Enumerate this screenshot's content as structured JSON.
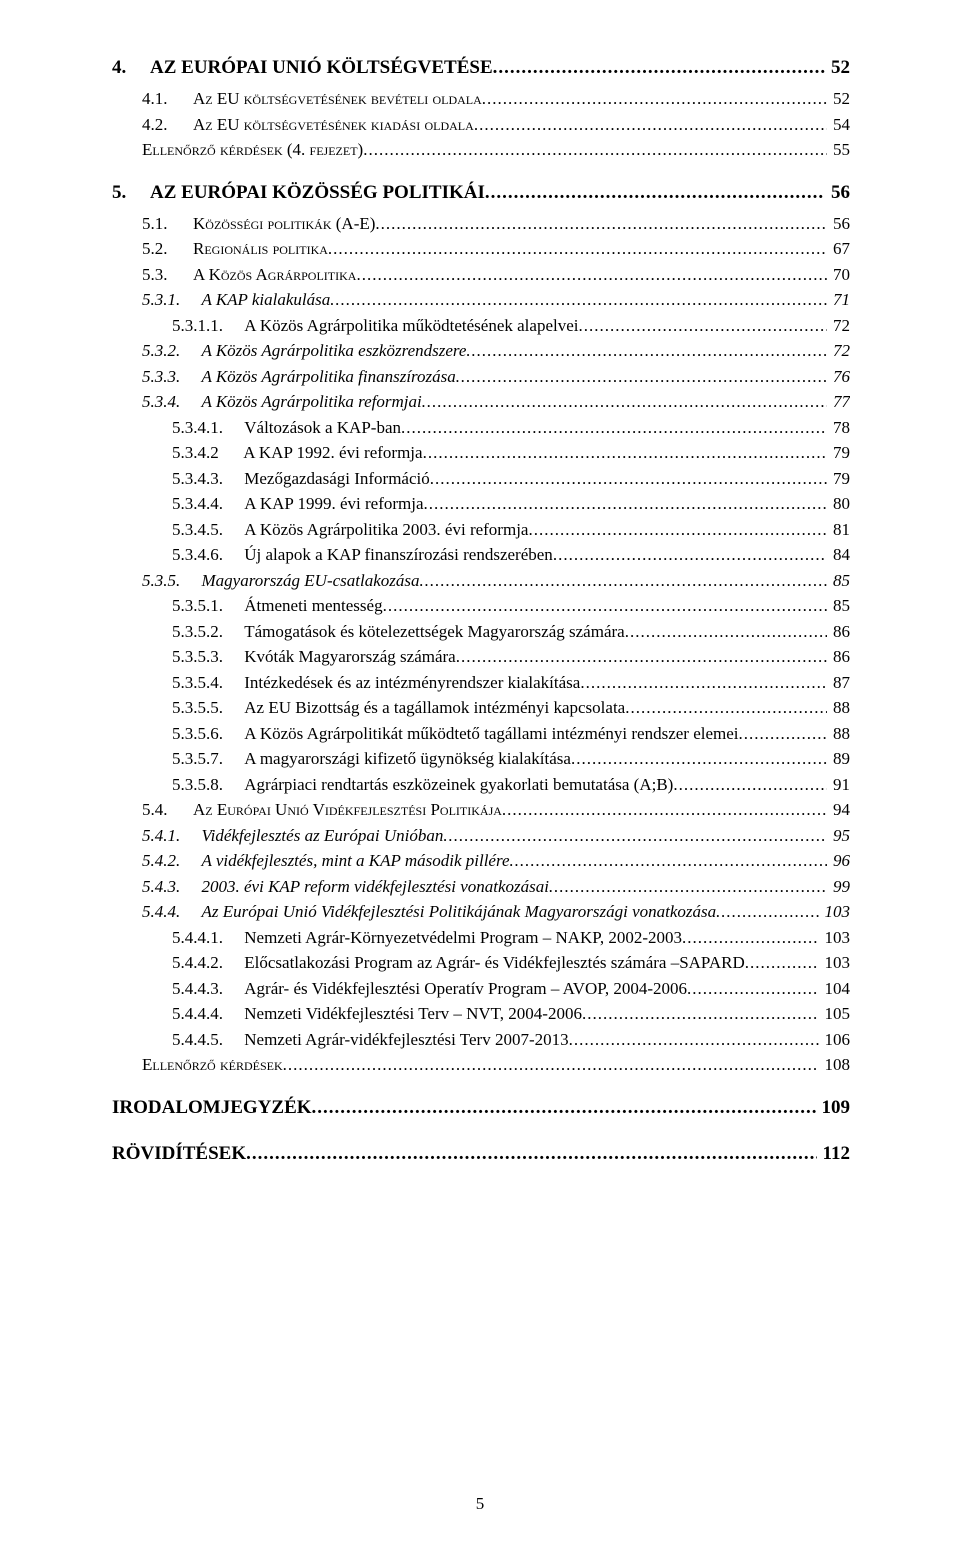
{
  "page_number": "5",
  "leaders_text": "............................................................................................................................................................................................................................................................................................................",
  "entries": [
    {
      "level": 0,
      "indent": 0,
      "num": "4.",
      "title": "AZ EURÓPAI UNIÓ KÖLTSÉGVETÉSE",
      "page": "52"
    },
    {
      "level": 1,
      "indent": 1,
      "num": "4.1.",
      "title": "Az EU költségvetésének bevételi oldala",
      "page": "52"
    },
    {
      "level": 1,
      "indent": 1,
      "num": "4.2.",
      "title": "Az EU költségvetésének kiadási oldala",
      "page": "54"
    },
    {
      "level": 1,
      "indent": 1,
      "num": "",
      "title": "Ellenőrző kérdések (4. fejezet)",
      "page": "55"
    },
    {
      "level": 0,
      "indent": 0,
      "num": "5.",
      "title": "AZ EURÓPAI KÖZÖSSÉG POLITIKÁI",
      "page": "56"
    },
    {
      "level": 1,
      "indent": 1,
      "num": "5.1.",
      "title": "Közösségi politikák (A-E)",
      "page": "56"
    },
    {
      "level": 1,
      "indent": 1,
      "num": "5.2.",
      "title": "Regionális politika",
      "page": "67"
    },
    {
      "level": 1,
      "indent": 1,
      "num": "5.3.",
      "title": "A Közös Agrárpolitika",
      "page": "70"
    },
    {
      "level": 2,
      "indent": 2,
      "num": "5.3.1.",
      "title": "A KAP kialakulása",
      "page": "71"
    },
    {
      "level": 3,
      "indent": 3,
      "num": "5.3.1.1.",
      "title": "A Közös Agrárpolitika működtetésének alapelvei",
      "page": "72"
    },
    {
      "level": 2,
      "indent": 2,
      "num": "5.3.2.",
      "title": "A Közös Agrárpolitika eszközrendszere",
      "page": "72"
    },
    {
      "level": 2,
      "indent": 2,
      "num": "5.3.3.",
      "title": "A Közös Agrárpolitika finanszírozása",
      "page": "76"
    },
    {
      "level": 2,
      "indent": 2,
      "num": "5.3.4.",
      "title": "A Közös Agrárpolitika reformjai",
      "page": "77"
    },
    {
      "level": 3,
      "indent": 3,
      "num": "5.3.4.1.",
      "title": "Változások a KAP-ban",
      "page": "78"
    },
    {
      "level": 3,
      "indent": 3,
      "num": "5.3.4.2",
      "title": "   A KAP 1992. évi reformja",
      "page": "79"
    },
    {
      "level": 3,
      "indent": 3,
      "num": "5.3.4.3.",
      "title": "Mezőgazdasági Információ",
      "page": "79"
    },
    {
      "level": 3,
      "indent": 3,
      "num": "5.3.4.4.",
      "title": "A KAP 1999. évi reformja",
      "page": "80"
    },
    {
      "level": 3,
      "indent": 3,
      "num": "5.3.4.5.",
      "title": "A Közös Agrárpolitika 2003. évi reformja",
      "page": "81"
    },
    {
      "level": 3,
      "indent": 3,
      "num": "5.3.4.6.",
      "title": "Új alapok a KAP finanszírozási rendszerében",
      "page": "84"
    },
    {
      "level": 2,
      "indent": 2,
      "num": "5.3.5.",
      "title": "Magyarország EU-csatlakozása",
      "page": "85"
    },
    {
      "level": 3,
      "indent": 3,
      "num": "5.3.5.1.",
      "title": "Átmeneti mentesség",
      "page": "85"
    },
    {
      "level": 3,
      "indent": 3,
      "num": "5.3.5.2.",
      "title": "Támogatások és kötelezettségek Magyarország számára",
      "page": "86"
    },
    {
      "level": 3,
      "indent": 3,
      "num": "5.3.5.3.",
      "title": "Kvóták Magyarország számára",
      "page": "86"
    },
    {
      "level": 3,
      "indent": 3,
      "num": "5.3.5.4.",
      "title": "Intézkedések és az intézményrendszer kialakítása",
      "page": "87"
    },
    {
      "level": 3,
      "indent": 3,
      "num": "5.3.5.5.",
      "title": "Az EU Bizottság és a tagállamok intézményi  kapcsolata",
      "page": "88"
    },
    {
      "level": 3,
      "indent": 3,
      "num": "5.3.5.6.",
      "title": "A Közös Agrárpolitikát működtető tagállami intézményi rendszer elemei",
      "page": "88"
    },
    {
      "level": 3,
      "indent": 3,
      "num": "5.3.5.7.",
      "title": "A magyarországi kifizető ügynökség kialakítása",
      "page": "89"
    },
    {
      "level": 3,
      "indent": 3,
      "num": "5.3.5.8.",
      "title": "Agrárpiaci rendtartás eszközeinek gyakorlati bemutatása (A;B)",
      "page": "91"
    },
    {
      "level": 1,
      "indent": 1,
      "num": "5.4.",
      "title": "Az Európai Unió Vidékfejlesztési Politikája",
      "page": "94"
    },
    {
      "level": 2,
      "indent": 2,
      "num": "5.4.1.",
      "title": "Vidékfejlesztés az Európai Unióban",
      "page": "95"
    },
    {
      "level": 2,
      "indent": 2,
      "num": "5.4.2.",
      "title": "A vidékfejlesztés, mint a KAP második pillére",
      "page": "96"
    },
    {
      "level": 2,
      "indent": 2,
      "num": "5.4.3.",
      "title": "2003. évi KAP reform vidékfejlesztési vonatkozásai",
      "page": "99"
    },
    {
      "level": 2,
      "indent": 2,
      "num": "5.4.4.",
      "title": "Az Európai Unió Vidékfejlesztési Politikájának Magyarországi vonatkozása",
      "page": "103"
    },
    {
      "level": 3,
      "indent": 3,
      "num": "5.4.4.1.",
      "title": "Nemzeti Agrár-Környezetvédelmi Program – NAKP, 2002-2003",
      "page": "103"
    },
    {
      "level": 3,
      "indent": 3,
      "num": "5.4.4.2.",
      "title": "Előcsatlakozási Program az Agrár- és Vidékfejlesztés számára –SAPARD",
      "page": "103"
    },
    {
      "level": 3,
      "indent": 3,
      "num": "5.4.4.3.",
      "title": "Agrár- és Vidékfejlesztési Operatív Program – AVOP, 2004-2006",
      "page": "104"
    },
    {
      "level": 3,
      "indent": 3,
      "num": "5.4.4.4.",
      "title": "Nemzeti Vidékfejlesztési Terv – NVT, 2004-2006",
      "page": "105"
    },
    {
      "level": 3,
      "indent": 3,
      "num": "5.4.4.5.",
      "title": "Nemzeti Agrár-vidékfejlesztési Terv 2007-2013",
      "page": "106"
    },
    {
      "level": 1,
      "indent": 1,
      "num": "",
      "title": "Ellenőrző kérdések",
      "page": "108"
    },
    {
      "level": 0,
      "indent": 0,
      "num": "",
      "title": "IRODALOMJEGYZÉK",
      "page": "109"
    },
    {
      "level": 0,
      "indent": 0,
      "num": "",
      "title": "RÖVIDÍTÉSEK",
      "page": "112"
    }
  ]
}
